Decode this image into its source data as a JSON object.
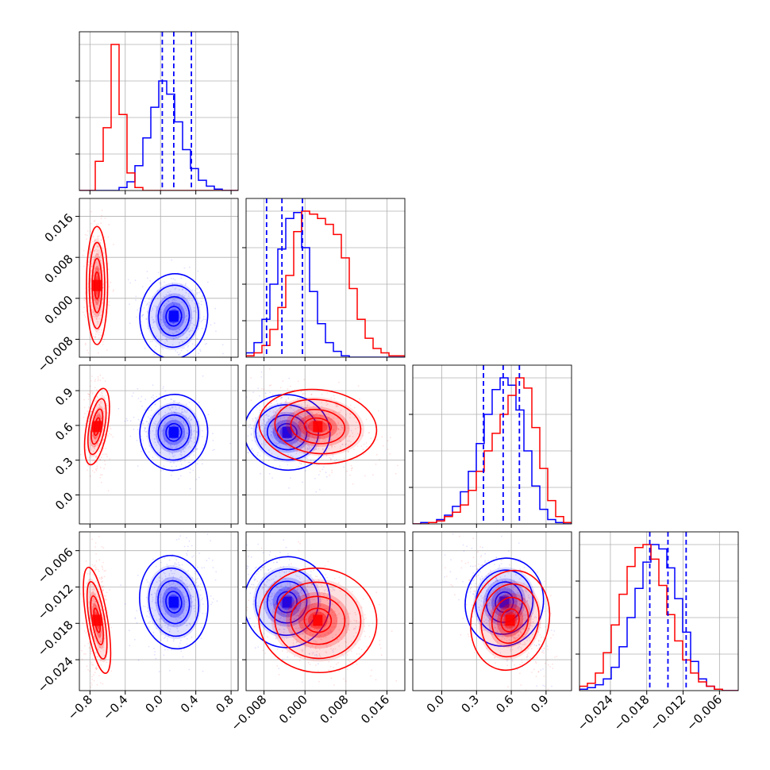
{
  "chart_data": {
    "type": "corner",
    "ndim": 4,
    "grid": true,
    "colors": {
      "red": "#ff0000",
      "blue": "#0000ff",
      "grid": "#b0b0b0"
    },
    "series": [
      {
        "color": "#ff0000",
        "mean": [
          -0.72,
          0.0025,
          0.59,
          -0.0175
        ],
        "sd": [
          0.05,
          0.0048,
          0.14,
          0.0037
        ]
      },
      {
        "color": "#0000ff",
        "mean": [
          0.15,
          -0.0035,
          0.54,
          -0.0145
        ],
        "sd": [
          0.16,
          0.0035,
          0.14,
          0.0033
        ]
      }
    ],
    "quantiles": [
      [
        0.02,
        0.15,
        0.35
      ],
      [
        -0.0075,
        -0.0045,
        -0.0005
      ],
      [
        0.36,
        0.53,
        0.67
      ],
      [
        -0.0175,
        -0.0145,
        -0.0115
      ]
    ],
    "axes": [
      {
        "range": [
          -0.92,
          0.88
        ],
        "ticks": [
          -0.8,
          -0.4,
          0.0,
          0.4,
          0.8
        ],
        "ticklabels": [
          "−0.8",
          "−0.4",
          "0.0",
          "0.4",
          "0.8"
        ]
      },
      {
        "range": [
          -0.0115,
          0.0195
        ],
        "ticks": [
          -0.008,
          0.0,
          0.008,
          0.016
        ],
        "ticklabels": [
          "−0.008",
          "0.000",
          "0.008",
          "0.016"
        ]
      },
      {
        "range": [
          -0.25,
          1.12
        ],
        "ticks": [
          0.0,
          0.3,
          0.6,
          0.9
        ],
        "ticklabels": [
          "0.0",
          "0.3",
          "0.6",
          "0.9"
        ]
      },
      {
        "range": [
          -0.0291,
          -0.0029
        ],
        "ticks": [
          -0.024,
          -0.018,
          -0.012,
          -0.006
        ],
        "ticklabels": [
          "−0.024",
          "−0.018",
          "−0.012",
          "−0.006"
        ]
      }
    ],
    "hist": {
      "red": [
        [
          0,
          0,
          0.2,
          0.43,
          1.0,
          0.52,
          0.12,
          0.02,
          0,
          0,
          0,
          0,
          0,
          0,
          0,
          0,
          0,
          0,
          0,
          0
        ],
        [
          0.01,
          0.03,
          0.08,
          0.19,
          0.34,
          0.56,
          0.86,
          1.0,
          0.98,
          0.95,
          0.91,
          0.84,
          0.68,
          0.47,
          0.26,
          0.13,
          0.06,
          0.03,
          0.01,
          0.01
        ],
        [
          0,
          0,
          0.01,
          0.02,
          0.05,
          0.08,
          0.13,
          0.23,
          0.36,
          0.5,
          0.62,
          0.75,
          0.88,
          1.0,
          0.93,
          0.66,
          0.38,
          0.16,
          0.05,
          0.01
        ],
        [
          0.03,
          0.05,
          0.12,
          0.26,
          0.45,
          0.66,
          0.85,
          0.98,
          1.0,
          0.9,
          0.72,
          0.52,
          0.34,
          0.21,
          0.12,
          0.06,
          0.03,
          0.01,
          0,
          0
        ]
      ],
      "blue": [
        [
          0,
          0,
          0,
          0,
          0,
          0.02,
          0.06,
          0.17,
          0.36,
          0.57,
          0.75,
          0.66,
          0.47,
          0.28,
          0.15,
          0.07,
          0.03,
          0.01,
          0,
          0
        ],
        [
          0.03,
          0.1,
          0.26,
          0.5,
          0.74,
          0.95,
          0.99,
          0.75,
          0.45,
          0.23,
          0.1,
          0.04,
          0.01,
          0,
          0,
          0,
          0,
          0,
          0,
          0
        ],
        [
          0,
          0.01,
          0.01,
          0.03,
          0.06,
          0.12,
          0.22,
          0.36,
          0.55,
          0.75,
          0.92,
          1.0,
          0.95,
          0.78,
          0.5,
          0.26,
          0.1,
          0.03,
          0.01,
          0
        ],
        [
          0.01,
          0.02,
          0.04,
          0.08,
          0.16,
          0.3,
          0.5,
          0.7,
          0.88,
          1.0,
          0.97,
          0.84,
          0.63,
          0.4,
          0.2,
          0.08,
          0.03,
          0.01,
          0,
          0
        ]
      ]
    }
  }
}
